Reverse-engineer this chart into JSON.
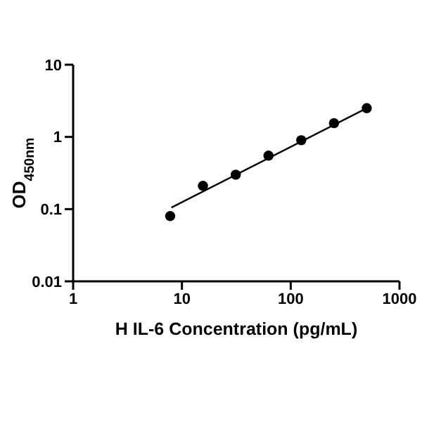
{
  "chart_data": {
    "type": "scatter",
    "xlabel": "H IL-6 Concentration (pg/mL)",
    "ylabel": "OD$_{450nm}$",
    "log": "xy",
    "xlim": [
      1,
      1000
    ],
    "xticks": [
      1,
      10,
      100,
      1000
    ],
    "ylim": [
      0.01,
      10
    ],
    "yticks": [
      0.01,
      0.1,
      1,
      10
    ],
    "grid": false,
    "legend": false,
    "marker": "circle",
    "x": [
      7.8,
      15.6,
      31.25,
      62.5,
      125,
      250,
      500
    ],
    "series": [
      {
        "type": "scatter",
        "color": "#000000",
        "values": [
          0.08,
          0.21,
          0.3,
          0.55,
          0.9,
          1.55,
          2.5
        ]
      },
      {
        "type": "line",
        "color": "#000000",
        "line_style": "solid",
        "marker": "none",
        "x": [
          8,
          500
        ],
        "values": [
          0.105,
          2.5
        ]
      }
    ]
  }
}
